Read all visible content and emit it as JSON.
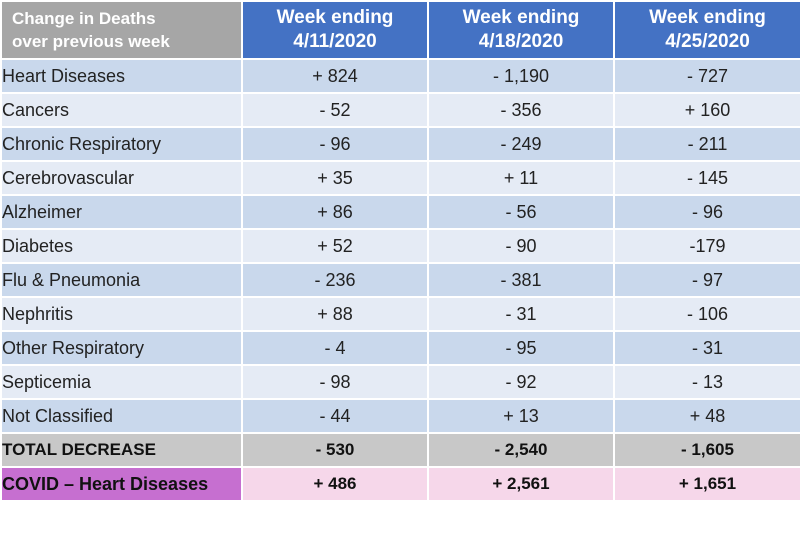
{
  "header": {
    "corner_line1": "Change in Deaths",
    "corner_line2": "over previous week",
    "weeks": [
      {
        "line1": "Week ending",
        "line2": "4/11/2020"
      },
      {
        "line1": "Week ending",
        "line2": "4/18/2020"
      },
      {
        "line1": "Week ending",
        "line2": "4/25/2020"
      }
    ]
  },
  "rows": [
    {
      "label": "Heart Diseases",
      "values": [
        "+ 824",
        "- 1,190",
        "- 727"
      ]
    },
    {
      "label": "Cancers",
      "values": [
        "- 52",
        "- 356",
        "+ 160"
      ]
    },
    {
      "label": "Chronic Respiratory",
      "values": [
        "- 96",
        "- 249",
        "- 211"
      ]
    },
    {
      "label": "Cerebrovascular",
      "values": [
        "+ 35",
        "+  11",
        "- 145"
      ]
    },
    {
      "label": "Alzheimer",
      "values": [
        "+ 86",
        "- 56",
        "- 96"
      ]
    },
    {
      "label": "Diabetes",
      "values": [
        "+ 52",
        "- 90",
        "-179"
      ]
    },
    {
      "label": "Flu & Pneumonia",
      "values": [
        "- 236",
        "- 381",
        "- 97"
      ]
    },
    {
      "label": "Nephritis",
      "values": [
        "+ 88",
        "- 31",
        "- 106"
      ]
    },
    {
      "label": "Other Respiratory",
      "values": [
        "- 4",
        "- 95",
        "- 31"
      ]
    },
    {
      "label": "Septicemia",
      "values": [
        "- 98",
        "- 92",
        "- 13"
      ]
    },
    {
      "label": "Not Classified",
      "values": [
        "- 44",
        "+ 13",
        "+ 48"
      ]
    }
  ],
  "total": {
    "label": "TOTAL DECREASE",
    "values": [
      "- 530",
      "- 2,540",
      "- 1,605"
    ]
  },
  "covid": {
    "label": "COVID – Heart Diseases",
    "values": [
      "+ 486",
      "+ 2,561",
      "+ 1,651"
    ]
  },
  "colors": {
    "header_corner": "#a6a6a6",
    "header_week": "#4472c4",
    "row_dark": "#c9d8ec",
    "row_light": "#e5ebf5",
    "total_row": "#c8c8c8",
    "covid_label": "#c66fd0",
    "covid_row": "#f6d7ea"
  }
}
